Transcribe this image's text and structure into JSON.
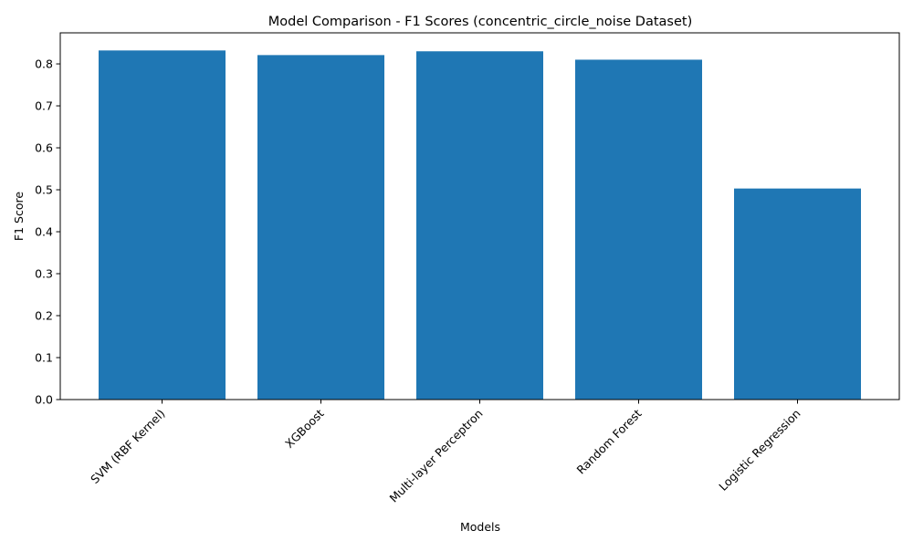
{
  "chart_data": {
    "type": "bar",
    "title": "Model Comparison - F1 Scores (concentric_circle_noise Dataset)",
    "xlabel": "Models",
    "ylabel": "F1 Score",
    "categories": [
      "SVM (RBF Kernel)",
      "XGBoost",
      "Multi-layer Perceptron",
      "Random Forest",
      "Logistic Regression"
    ],
    "values": [
      0.832,
      0.821,
      0.83,
      0.81,
      0.503
    ],
    "ylim": [
      0,
      0.874
    ],
    "yticks": [
      "0.0",
      "0.1",
      "0.2",
      "0.3",
      "0.4",
      "0.5",
      "0.6",
      "0.7",
      "0.8"
    ],
    "grid": false,
    "legend": "none",
    "colors": {
      "bar": "#1f77b4",
      "axis": "#000000",
      "background": "#ffffff"
    }
  }
}
